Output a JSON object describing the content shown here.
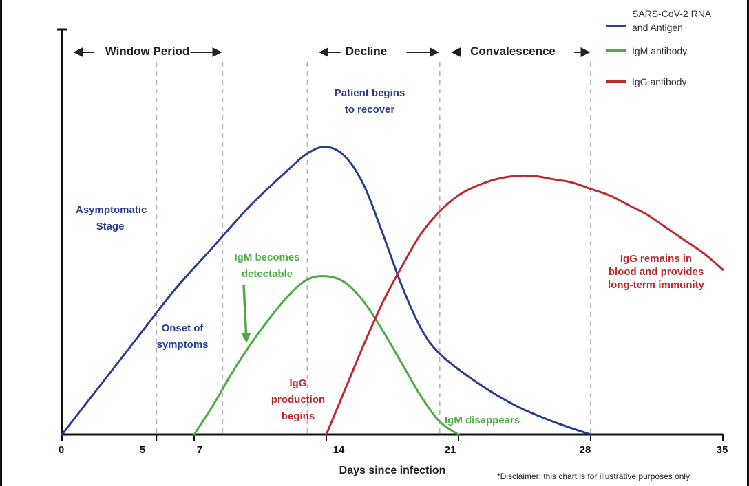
{
  "chart_data": {
    "type": "line",
    "xlabel": "Days since infection",
    "ylabel": "",
    "x_ticks": [
      0,
      5,
      7,
      14,
      21,
      28,
      35
    ],
    "xlim": [
      0,
      35
    ],
    "ylim": [
      0,
      100
    ],
    "grid": false,
    "legend_position": "top-right",
    "series": [
      {
        "name": "SARS-CoV-2 RNA and Antigen",
        "color": "#2a3d8f",
        "x": [
          0,
          2,
          4,
          6,
          8,
          10,
          12,
          13,
          14,
          15,
          16,
          17,
          18,
          19,
          20,
          22,
          24,
          26,
          28
        ],
        "y": [
          0,
          15,
          30,
          45,
          58,
          71,
          82,
          87,
          89,
          86,
          77,
          62,
          46,
          33,
          25,
          16,
          9,
          4,
          0
        ]
      },
      {
        "name": "IgM antibody",
        "color": "#4daa44",
        "x": [
          7,
          8,
          9,
          10,
          11,
          12,
          13,
          14,
          15,
          16,
          17,
          18,
          19,
          20,
          21
        ],
        "y": [
          0,
          9,
          19,
          28,
          36,
          43,
          48,
          49,
          47,
          41,
          32,
          22,
          12,
          4,
          0
        ]
      },
      {
        "name": "IgG antibody",
        "color": "#c0282e",
        "x": [
          14,
          15,
          16,
          17,
          18,
          19,
          20,
          21,
          22,
          23,
          24,
          25,
          26,
          27,
          28,
          29,
          30,
          31,
          32,
          33,
          34,
          35
        ],
        "y": [
          0,
          14,
          28,
          41,
          52,
          62,
          69,
          74,
          77,
          79,
          80,
          80,
          79,
          78,
          76,
          74,
          71,
          68,
          64,
          60,
          56,
          51
        ]
      }
    ],
    "vlines": [
      5,
      8.5,
      13,
      20,
      28
    ],
    "periods": [
      {
        "label": "Window Period",
        "from": 0,
        "to": 8.5
      },
      {
        "label": "Decline",
        "from": 13,
        "to": 20
      },
      {
        "label": "Convalescence",
        "from": 20,
        "to": 28
      }
    ]
  },
  "annotations": {
    "asymptomatic": [
      "Asymptomatic",
      "Stage"
    ],
    "onset": [
      "Onset of",
      "symptoms"
    ],
    "recover": [
      "Patient begins",
      "to recover"
    ],
    "igm_detectable": [
      "IgM becomes",
      "detectable"
    ],
    "igg_production": [
      "IgG",
      "production",
      "begins"
    ],
    "igm_disappears": "IgM disappears",
    "igg_remains": [
      "IgG remains in",
      "blood and provides",
      "long-term immunity"
    ]
  },
  "legend": [
    {
      "label": [
        "SARS-CoV-2 RNA",
        "and Antigen"
      ],
      "color": "#2a3d8f"
    },
    {
      "label": [
        "IgM antibody"
      ],
      "color": "#4daa44"
    },
    {
      "label": [
        "IgG antibody"
      ],
      "color": "#c0282e"
    }
  ],
  "disclaimer": "*Disclaimer: this chart is for illustrative purposes only",
  "colors": {
    "blue": "#2a3d8f",
    "green": "#4daa44",
    "red": "#c0282e",
    "grid": "#b5b5b5",
    "axis": "#111111"
  }
}
